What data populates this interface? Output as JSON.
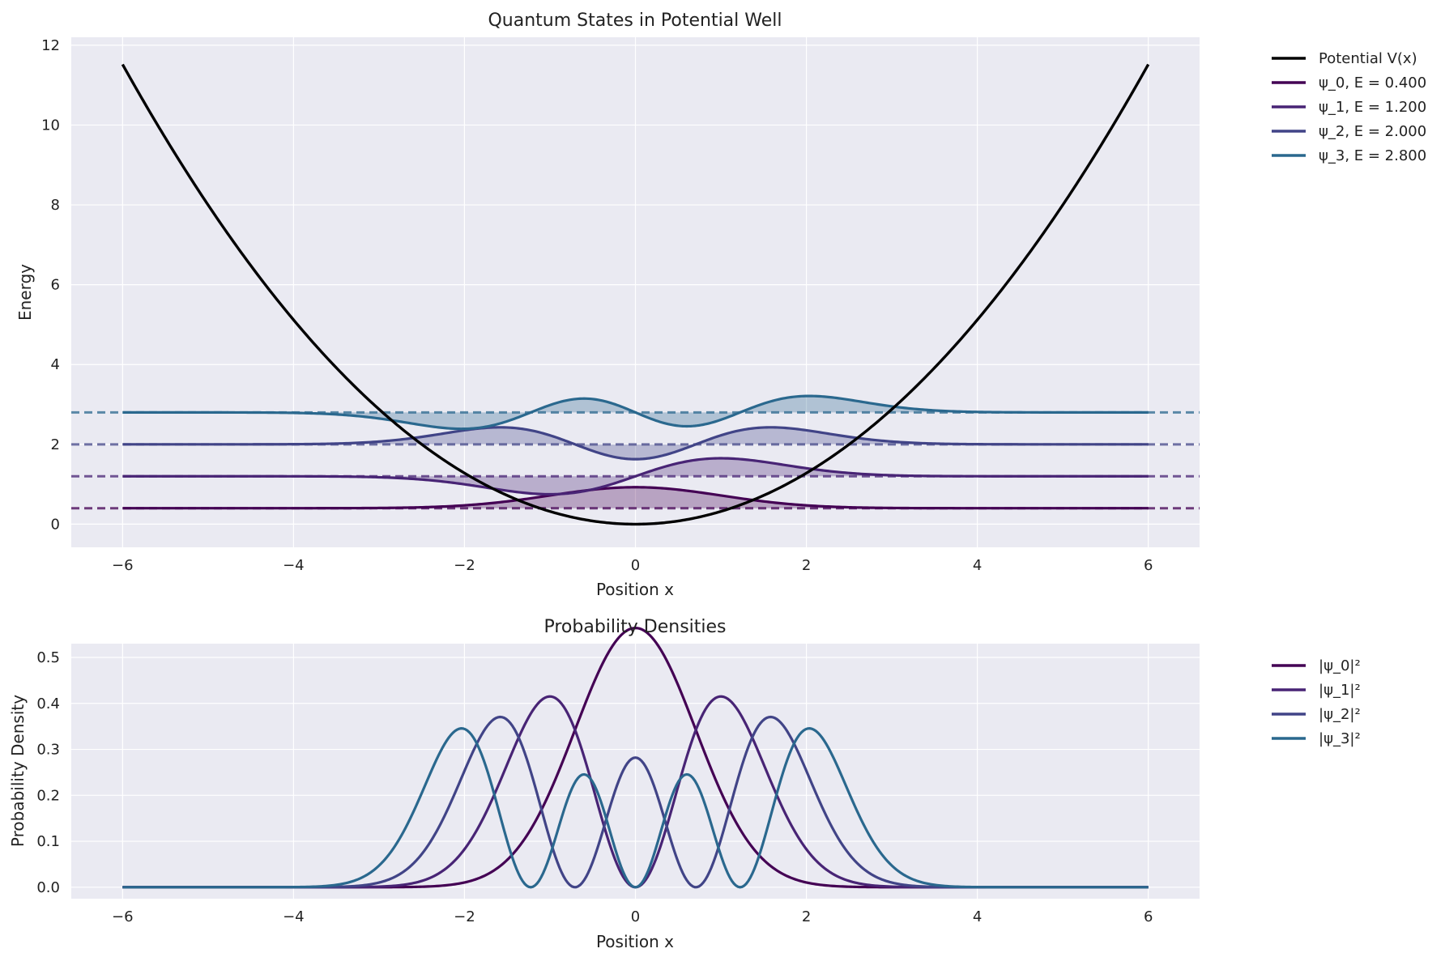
{
  "chart_data": [
    {
      "type": "line",
      "title": "Quantum States in Potential Well",
      "xlabel": "Position x",
      "ylabel": "Energy",
      "xlim": [
        -6.6,
        6.6
      ],
      "ylim": [
        -0.58,
        12.2
      ],
      "xticks": [
        -6,
        -4,
        -2,
        0,
        2,
        4,
        6
      ],
      "xtick_labels": [
        "−6",
        "−4",
        "−2",
        "0",
        "2",
        "4",
        "6"
      ],
      "yticks": [
        0,
        2,
        4,
        6,
        8,
        10,
        12
      ],
      "ytick_labels": [
        "0",
        "2",
        "4",
        "6",
        "8",
        "10",
        "12"
      ],
      "grid": true,
      "legend": "outside-top-right",
      "potential": {
        "name": "Potential V(x)",
        "formula": "0.32*x^2",
        "x_range": [
          -6,
          6
        ],
        "color": "#000000"
      },
      "series": [
        {
          "name": "ψ_0, E = 0.400",
          "n": 0,
          "energy": 0.4,
          "color": "#440154"
        },
        {
          "name": "ψ_1, E = 1.200",
          "n": 1,
          "energy": 1.2,
          "color": "#482475"
        },
        {
          "name": "ψ_2, E = 2.000",
          "n": 2,
          "energy": 2.0,
          "color": "#414487"
        },
        {
          "name": "ψ_3, E = 2.800",
          "n": 3,
          "energy": 2.8,
          "color": "#2a688e"
        }
      ]
    },
    {
      "type": "line",
      "title": "Probability Densities",
      "xlabel": "Position x",
      "ylabel": "Probability Density",
      "xlim": [
        -6.6,
        6.6
      ],
      "ylim": [
        -0.025,
        0.53
      ],
      "xticks": [
        -6,
        -4,
        -2,
        0,
        2,
        4,
        6
      ],
      "xtick_labels": [
        "−6",
        "−4",
        "−2",
        "0",
        "2",
        "4",
        "6"
      ],
      "yticks": [
        0.0,
        0.1,
        0.2,
        0.3,
        0.4,
        0.5
      ],
      "ytick_labels": [
        "0.0",
        "0.1",
        "0.2",
        "0.3",
        "0.4",
        "0.5"
      ],
      "grid": true,
      "legend": "outside-top-right",
      "series": [
        {
          "name": "|ψ_0|²",
          "n": 0,
          "peak": 0.505,
          "color": "#440154"
        },
        {
          "name": "|ψ_1|²",
          "n": 1,
          "peak": 0.372,
          "color": "#482475"
        },
        {
          "name": "|ψ_2|²",
          "n": 2,
          "peak": 0.332,
          "color": "#414487"
        },
        {
          "name": "|ψ_3|²",
          "n": 3,
          "peak": 0.31,
          "color": "#2a688e"
        }
      ]
    }
  ]
}
